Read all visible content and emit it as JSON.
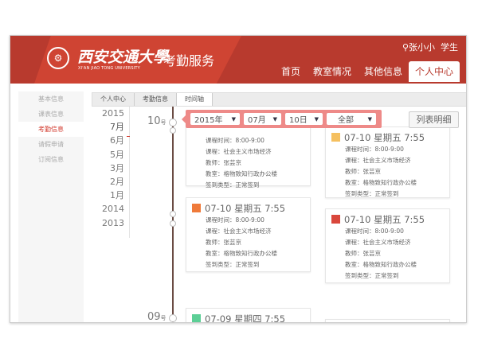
{
  "header": {
    "university_cn": "西安交通大學",
    "university_en": "XI'AN JIAO TONG UNIVERSITY",
    "service": "考勤服务",
    "user_name": "张小小",
    "user_role": "学生",
    "nav": [
      {
        "label": "首页"
      },
      {
        "label": "教室情况"
      },
      {
        "label": "其他信息"
      },
      {
        "label": "个人中心",
        "active": true
      }
    ]
  },
  "sidebar": {
    "items": [
      {
        "label": "基本信息"
      },
      {
        "label": "课表信息"
      },
      {
        "label": "考勤信息",
        "active": true
      },
      {
        "label": "请假申请"
      },
      {
        "label": "订阅信息"
      }
    ]
  },
  "breadcrumb": [
    "个人中心",
    "考勤信息",
    "时间轴"
  ],
  "years": [
    "2015",
    "7月",
    "6月",
    "5月",
    "3月",
    "2月",
    "1月",
    "2014",
    "2013"
  ],
  "filter": {
    "year": "2015年",
    "month": "07月",
    "day": "10日",
    "type": "全部",
    "list_button": "列表明细"
  },
  "days": [
    {
      "num": "10",
      "suffix": "号"
    },
    {
      "num": "09",
      "suffix": "号"
    }
  ],
  "field_labels": {
    "time": "课程时间：",
    "course": "课程：",
    "teacher": "教师：",
    "room": "教室：",
    "type": "签到类型："
  },
  "cards": [
    {
      "title": "",
      "time": "8:00-9:00",
      "course": "社会主义市场经济",
      "teacher": "张芸京",
      "room": "格物致知行政办公楼",
      "type": "正常签到",
      "color": "#f0a030"
    },
    {
      "title": "07-10 星期五 7:55",
      "time": "8:00-9:00",
      "course": "社会主义市场经济",
      "teacher": "张芸京",
      "room": "格物致知行政办公楼",
      "type": "正常签到",
      "color": "#f5c060"
    },
    {
      "title": "07-10 星期五 7:55",
      "time": "8:00-9:00",
      "course": "社会主义市场经济",
      "teacher": "张芸京",
      "room": "格物致知行政办公楼",
      "type": "正常签到",
      "color": "#ef7a3a"
    },
    {
      "title": "07-10 星期五 7:55",
      "time": "8:00-9:00",
      "course": "社会主义市场经济",
      "teacher": "张芸京",
      "room": "格物致知行政办公楼",
      "type": "正常签到",
      "color": "#d9473c"
    },
    {
      "title": "07-09 星期四 7:55",
      "color": "#5ccf96"
    }
  ],
  "colors": {
    "brand": "#b83a2e",
    "accent": "#d2392c",
    "filter_bg": "#ee8a88",
    "timeline": "#6b4c44"
  }
}
